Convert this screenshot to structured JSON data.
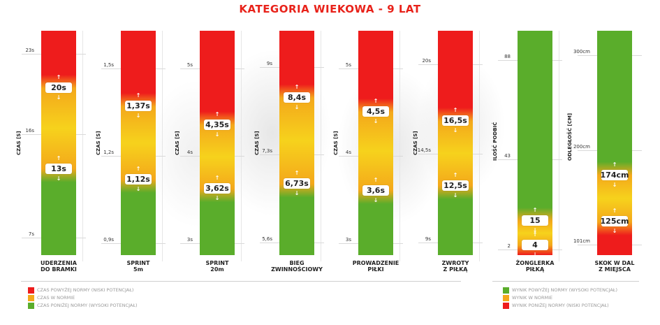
{
  "title": "KATEGORIA WIEKOWA - 9 LAT",
  "chart_data": [
    {
      "type": "bar",
      "label_lines": [
        "UDERZENIA",
        "DO BRAMKI"
      ],
      "ylabel": "CZAS [S]",
      "ticks": [
        "23s",
        "16s",
        "7s"
      ],
      "tick_values": [
        23,
        16,
        7
      ],
      "ylim": [
        5.5,
        25
      ],
      "upper_threshold": "20s",
      "lower_threshold": "13s",
      "upper_value": 20,
      "lower_value": 13,
      "gradient": "red-top"
    },
    {
      "type": "bar",
      "label_lines": [
        "SPRINT",
        "5m"
      ],
      "ylabel": "CZAS [S]",
      "ticks": [
        "1,5s",
        "1,2s",
        "0,9s"
      ],
      "tick_values": [
        1.5,
        1.2,
        0.9
      ],
      "ylim": [
        0.86,
        1.63
      ],
      "upper_threshold": "1,37s",
      "lower_threshold": "1,12s",
      "upper_value": 1.37,
      "lower_value": 1.12,
      "gradient": "red-top"
    },
    {
      "type": "bar",
      "label_lines": [
        "SPRINT",
        "20m"
      ],
      "ylabel": "CZAS [S]",
      "ticks": [
        "5s",
        "4s",
        "3s"
      ],
      "tick_values": [
        5,
        4,
        3
      ],
      "ylim": [
        2.86,
        5.43
      ],
      "upper_threshold": "4,35s",
      "lower_threshold": "3,62s",
      "upper_value": 4.35,
      "lower_value": 3.62,
      "gradient": "red-top"
    },
    {
      "type": "bar",
      "label_lines": [
        "BIEG",
        "ZWINNOŚCIOWY"
      ],
      "ylabel": "CZAS [S]",
      "ticks": [
        "9s",
        "7,3s",
        "5,6s"
      ],
      "tick_values": [
        9,
        7.3,
        5.6
      ],
      "ylim": [
        5.35,
        9.7
      ],
      "upper_threshold": "8,4s",
      "lower_threshold": "6,73s",
      "upper_value": 8.4,
      "lower_value": 6.73,
      "gradient": "red-top"
    },
    {
      "type": "bar",
      "label_lines": [
        "PROWADZENIE",
        "PIŁKI"
      ],
      "ylabel": "CZAS [S]",
      "ticks": [
        "5s",
        "4s",
        "3s"
      ],
      "tick_values": [
        5,
        4,
        3
      ],
      "ylim": [
        2.86,
        5.43
      ],
      "upper_threshold": "4,5s",
      "lower_threshold": "3,6s",
      "upper_value": 4.5,
      "lower_value": 3.6,
      "gradient": "red-top"
    },
    {
      "type": "bar",
      "label_lines": [
        "ZWROTY",
        "Z PIŁKĄ"
      ],
      "ylabel": "CZAS [S]",
      "ticks": [
        "20s",
        "14,5s",
        "9s"
      ],
      "tick_values": [
        20,
        14.5,
        9
      ],
      "ylim": [
        8.2,
        22.1
      ],
      "upper_threshold": "16,5s",
      "lower_threshold": "12,5s",
      "upper_value": 16.5,
      "lower_value": 12.5,
      "gradient": "red-top"
    },
    {
      "type": "bar",
      "label_lines": [
        "ŻONGLERKA",
        "PIŁKĄ"
      ],
      "ylabel": "ILOŚĆ PODBIĆ",
      "ticks": [
        "88",
        "43",
        "2"
      ],
      "tick_values": [
        88,
        43,
        2
      ],
      "ylim": [
        -0.5,
        101.5
      ],
      "upper_threshold": "15",
      "lower_threshold": "4",
      "upper_value": 15,
      "lower_value": 4,
      "gradient": "green-top"
    },
    {
      "type": "bar",
      "label_lines": [
        "SKOK W DAL",
        "Z MIEJSCA"
      ],
      "ylabel": "ODLEGŁOŚĆ [CM]",
      "ticks": [
        "300cm",
        "200cm",
        "101cm"
      ],
      "tick_values": [
        300,
        200,
        101
      ],
      "ylim": [
        90,
        326
      ],
      "upper_threshold": "174cm",
      "lower_threshold": "125cm",
      "upper_value": 174,
      "lower_value": 125,
      "gradient": "green-top"
    }
  ],
  "legend_left": [
    {
      "text": "CZAS POWYŻEJ NORMY (NISKI POTENCJAŁ)",
      "color": "#ee1c1c"
    },
    {
      "text": "CZAS W NORMIE",
      "color": "#f4a81b"
    },
    {
      "text": "CZAS PONIŻEJ NORMY (WYSOKI POTENCJAŁ)",
      "color": "#5aad2b"
    }
  ],
  "legend_right": [
    {
      "text": "WYNIK POWYŻEJ NORMY (WYSOKI POTENCJAŁ)",
      "color": "#5aad2b"
    },
    {
      "text": "WYNIK W NORMIE",
      "color": "#f4a81b"
    },
    {
      "text": "WYNIK PONIŻEJ NORMY (NISKI POTENCJAŁ)",
      "color": "#ee1c1c"
    }
  ],
  "colors": {
    "red": "#ee1c1c",
    "yellow": "#f6d21c",
    "orange": "#f4a81b",
    "green": "#5aad2b"
  }
}
